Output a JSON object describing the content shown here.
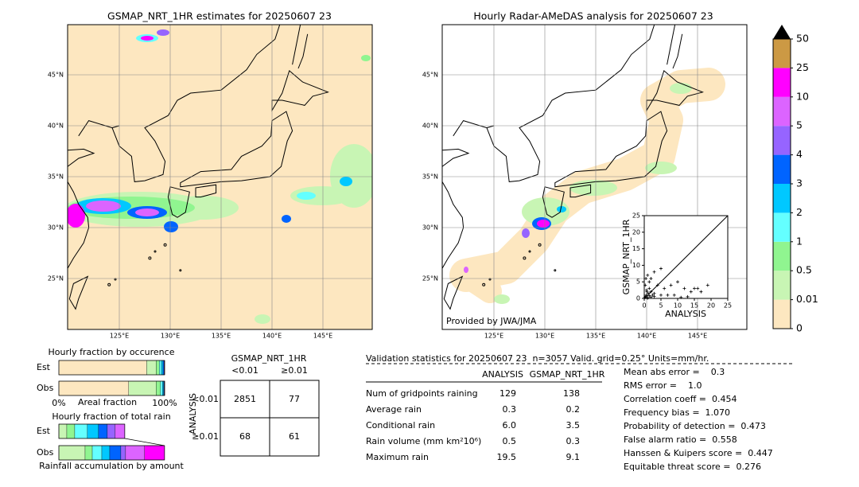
{
  "maps": [
    {
      "title": "GSMAP_NRT_1HR estimates for 20250607 23",
      "lon_labels": [
        "125°E",
        "130°E",
        "135°E",
        "140°E",
        "145°E"
      ],
      "lat_labels": [
        "45°N",
        "40°N",
        "35°N",
        "30°N",
        "25°N"
      ]
    },
    {
      "title": "Hourly Radar-AMeDAS analysis for 20250607 23",
      "lon_labels": [
        "125°E",
        "130°E",
        "135°E",
        "140°E",
        "145°E"
      ],
      "lat_labels": [
        "45°N",
        "40°N",
        "35°N",
        "30°N",
        "25°N"
      ],
      "credit": "Provided by JWA/JMA"
    }
  ],
  "chart_data": [
    {
      "type": "colorbar",
      "bounds": [
        0,
        0.01,
        0.5,
        1,
        2,
        3,
        4,
        5,
        10,
        25,
        50
      ],
      "colors": [
        "#fde7c0",
        "#c8f5b4",
        "#90f590",
        "#64ffff",
        "#00c8ff",
        "#0064ff",
        "#9664ff",
        "#dc64ff",
        "#ff00ff",
        "#cc9944"
      ],
      "extend_color": "#000000"
    },
    {
      "type": "scatter",
      "xlabel": "ANALYSIS",
      "ylabel": "GSMAP_NRT_1HR",
      "x": [
        0.2,
        0.4,
        0.6,
        0.8,
        1,
        1.2,
        1.5,
        2,
        2.5,
        3,
        0.3,
        0.5,
        1,
        1.5,
        2,
        3,
        4,
        5,
        6,
        7,
        8,
        9,
        10,
        12,
        14,
        15,
        16,
        17,
        19,
        1,
        2,
        3,
        5,
        1.5,
        0.7,
        11,
        13
      ],
      "y": [
        0.3,
        0.5,
        1,
        2,
        0.2,
        1.5,
        3,
        0.4,
        1,
        0.6,
        4,
        6,
        7,
        5,
        2,
        8,
        4,
        9,
        3,
        1,
        4,
        1,
        5,
        3,
        2,
        3,
        3,
        2,
        4,
        0.1,
        6,
        1.5,
        1,
        0.8,
        2.5,
        0.3,
        0.5
      ],
      "xlim": [
        0,
        25
      ],
      "ylim": [
        0,
        25
      ],
      "xticks": [
        0,
        5,
        10,
        15,
        20,
        25
      ],
      "yticks": [
        0,
        5,
        10,
        15,
        20,
        25
      ]
    },
    {
      "type": "stacked-bar",
      "title": "Hourly fraction by occurence",
      "xlabel": "Areal fraction",
      "categories": [
        "Est",
        "Obs"
      ],
      "xlim": [
        0,
        1
      ],
      "xticks": [
        {
          "value": 0,
          "label": "0%"
        },
        {
          "value": 1,
          "label": "100%"
        }
      ],
      "series": [
        {
          "color": "#fde7c0",
          "values": [
            0.83,
            0.66
          ]
        },
        {
          "color": "#c8f5b4",
          "values": [
            0.09,
            0.26
          ]
        },
        {
          "color": "#90f590",
          "values": [
            0.03,
            0.04
          ]
        },
        {
          "color": "#64ffff",
          "values": [
            0.02,
            0.02
          ]
        },
        {
          "color": "#00c8ff",
          "values": [
            0.015,
            0.01
          ]
        },
        {
          "color": "#0064ff",
          "values": [
            0.01,
            0.005
          ]
        },
        {
          "color": "#9664ff",
          "values": [
            0.005,
            0.005
          ]
        }
      ]
    },
    {
      "type": "stacked-bar",
      "title": "Hourly fraction of total rain",
      "xlabel": "Rainfall accumulation by amount",
      "categories": [
        "Est",
        "Obs"
      ],
      "xlim": [
        0,
        1
      ],
      "series": [
        {
          "color": "#c8f5b4",
          "values": [
            0.075,
            0.248
          ]
        },
        {
          "color": "#90f590",
          "values": [
            0.075,
            0.068
          ]
        },
        {
          "color": "#64ffff",
          "values": [
            0.12,
            0.09
          ]
        },
        {
          "color": "#00c8ff",
          "values": [
            0.105,
            0.075
          ]
        },
        {
          "color": "#0064ff",
          "values": [
            0.083,
            0.105
          ]
        },
        {
          "color": "#9664ff",
          "values": [
            0.075,
            0.045
          ]
        },
        {
          "color": "#dc64ff",
          "values": [
            0.09,
            0.18
          ]
        },
        {
          "color": "#ff00ff",
          "values": [
            0,
            0.188
          ]
        }
      ]
    }
  ],
  "contingency": {
    "title": "GSMAP_NRT_1HR",
    "col_labels": [
      "<0.01",
      "≥0.01"
    ],
    "row_title": "ANALYSIS",
    "row_labels": [
      "<0.01",
      "≥0.01"
    ],
    "cells": [
      [
        "2851",
        "77"
      ],
      [
        "68",
        "61"
      ]
    ]
  },
  "validation": {
    "title": "Validation statistics for 20250607 23  n=3057 Valid. grid=0.25° Units=mm/hr.",
    "headers": [
      "ANALYSIS",
      "GSMAP_NRT_1HR"
    ],
    "rows": [
      [
        "Num of gridpoints raining",
        "129",
        "138"
      ],
      [
        "Average rain",
        "0.3",
        "0.2"
      ],
      [
        "Conditional rain",
        "6.0",
        "3.5"
      ],
      [
        "Rain volume (mm km²10⁶)",
        "0.5",
        "0.3"
      ],
      [
        "Maximum rain",
        "19.5",
        "9.1"
      ]
    ],
    "scores": [
      "Mean abs error =    0.3",
      "RMS error =    1.0",
      "Correlation coeff =  0.454",
      "Frequency bias =  1.070",
      "Probability of detection =  0.473",
      "False alarm ratio =  0.558",
      "Hanssen & Kuipers score =  0.447",
      "Equitable threat score =  0.276"
    ]
  }
}
